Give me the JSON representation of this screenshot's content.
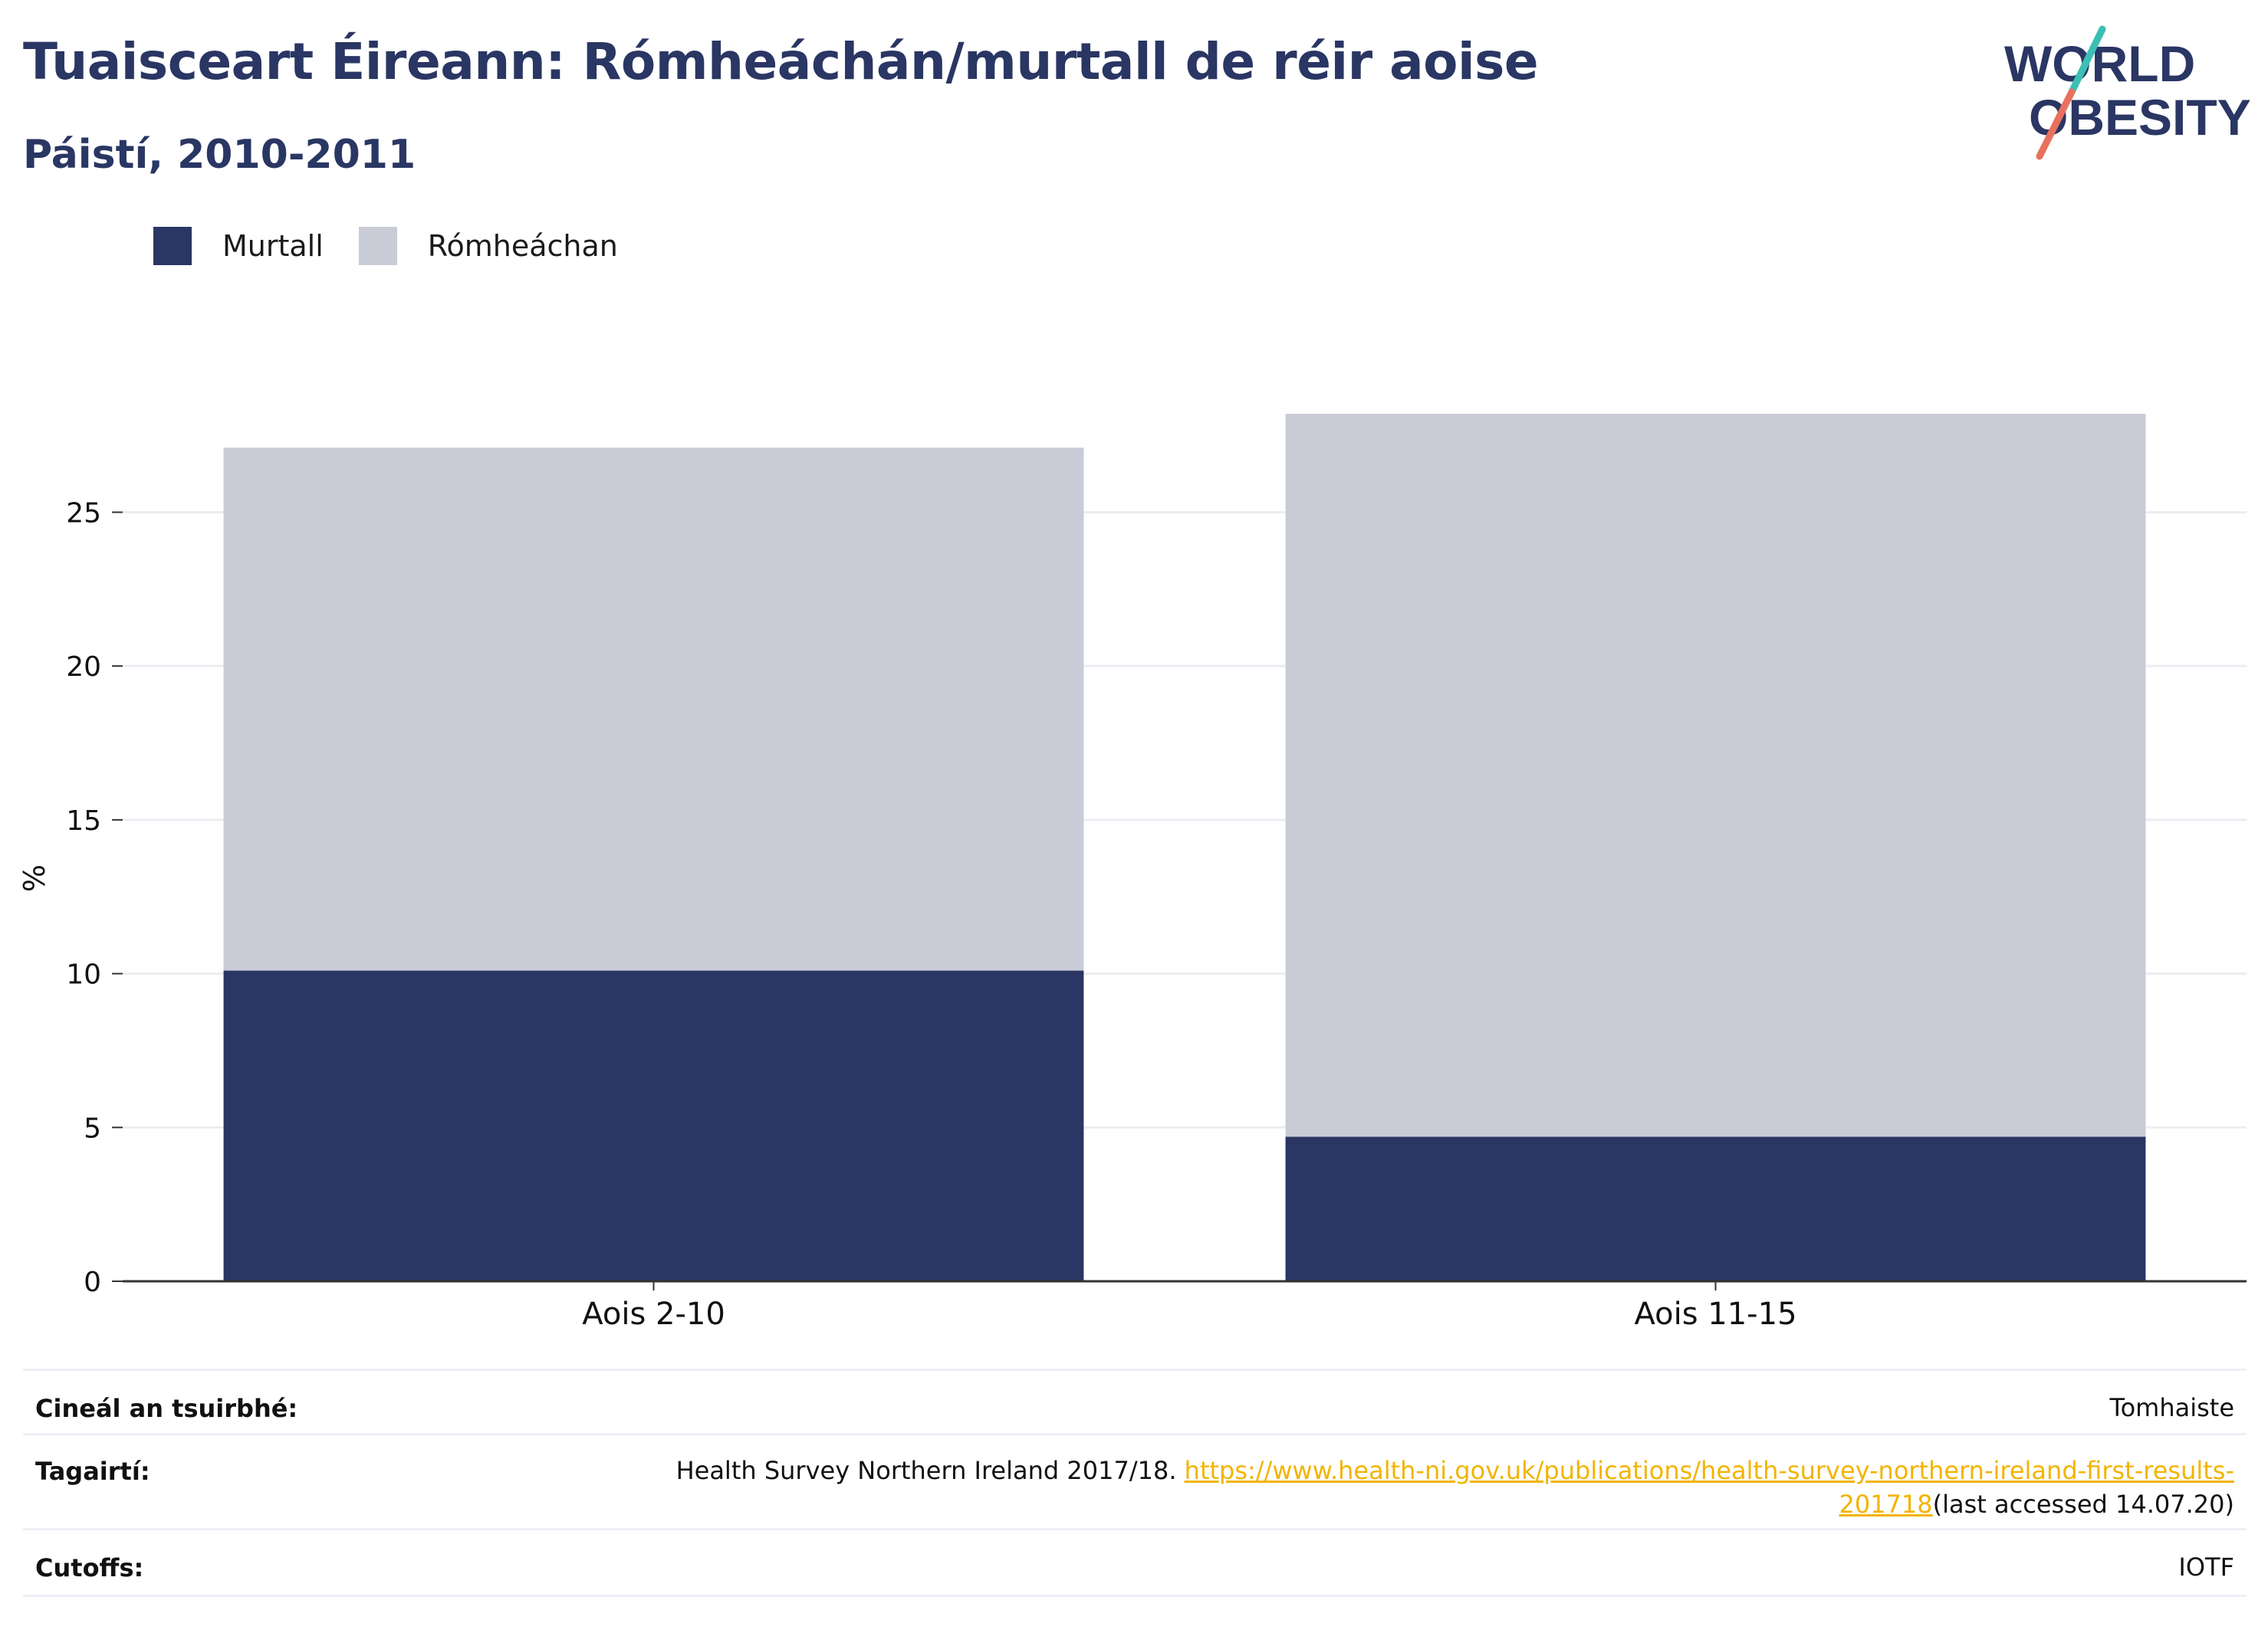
{
  "header": {
    "title": "Tuaisceart Éireann: Rómheáchán/murtall de réir aoise",
    "subtitle": "Páistí, 2010-2011"
  },
  "logo": {
    "line1": "WORLD",
    "line2": "OBESITY",
    "colors": {
      "text": "#2a3663",
      "slash_top": "#3bbfb5",
      "slash_bottom": "#e8705e"
    }
  },
  "legend": [
    {
      "label": "Murtall",
      "color": "#2a3663"
    },
    {
      "label": "Rómheáchan",
      "color": "#c9cbd6"
    }
  ],
  "chart_data": {
    "type": "bar",
    "stacked": true,
    "categories": [
      "Aois 2-10",
      "Aois 11-15"
    ],
    "series": [
      {
        "name": "Murtall",
        "values": [
          10.1,
          4.7
        ],
        "color": "#2a3663"
      },
      {
        "name": "Rómheáchan",
        "values": [
          17.0,
          23.5
        ],
        "color": "#c9cbd6"
      }
    ],
    "ylabel": "%",
    "ylim": [
      0,
      28.2
    ],
    "yticks": [
      0,
      5,
      10,
      15,
      20,
      25
    ],
    "grid": true,
    "legend_position": "top-left"
  },
  "meta": {
    "survey_type": {
      "key": "Cineál an tsuirbhé:",
      "value": "Tomhaiste"
    },
    "references": {
      "key": "Tagairtí:",
      "text": "Health Survey Northern Ireland 2017/18.",
      "link_part1": "https://www.health-ni.gov.uk/publications/health-survey-northern-ireland-first-results-",
      "link_part2": "201718",
      "suffix": "(last accessed 14.07.20)"
    },
    "cutoffs": {
      "key": "Cutoffs:",
      "value": "IOTF"
    }
  }
}
